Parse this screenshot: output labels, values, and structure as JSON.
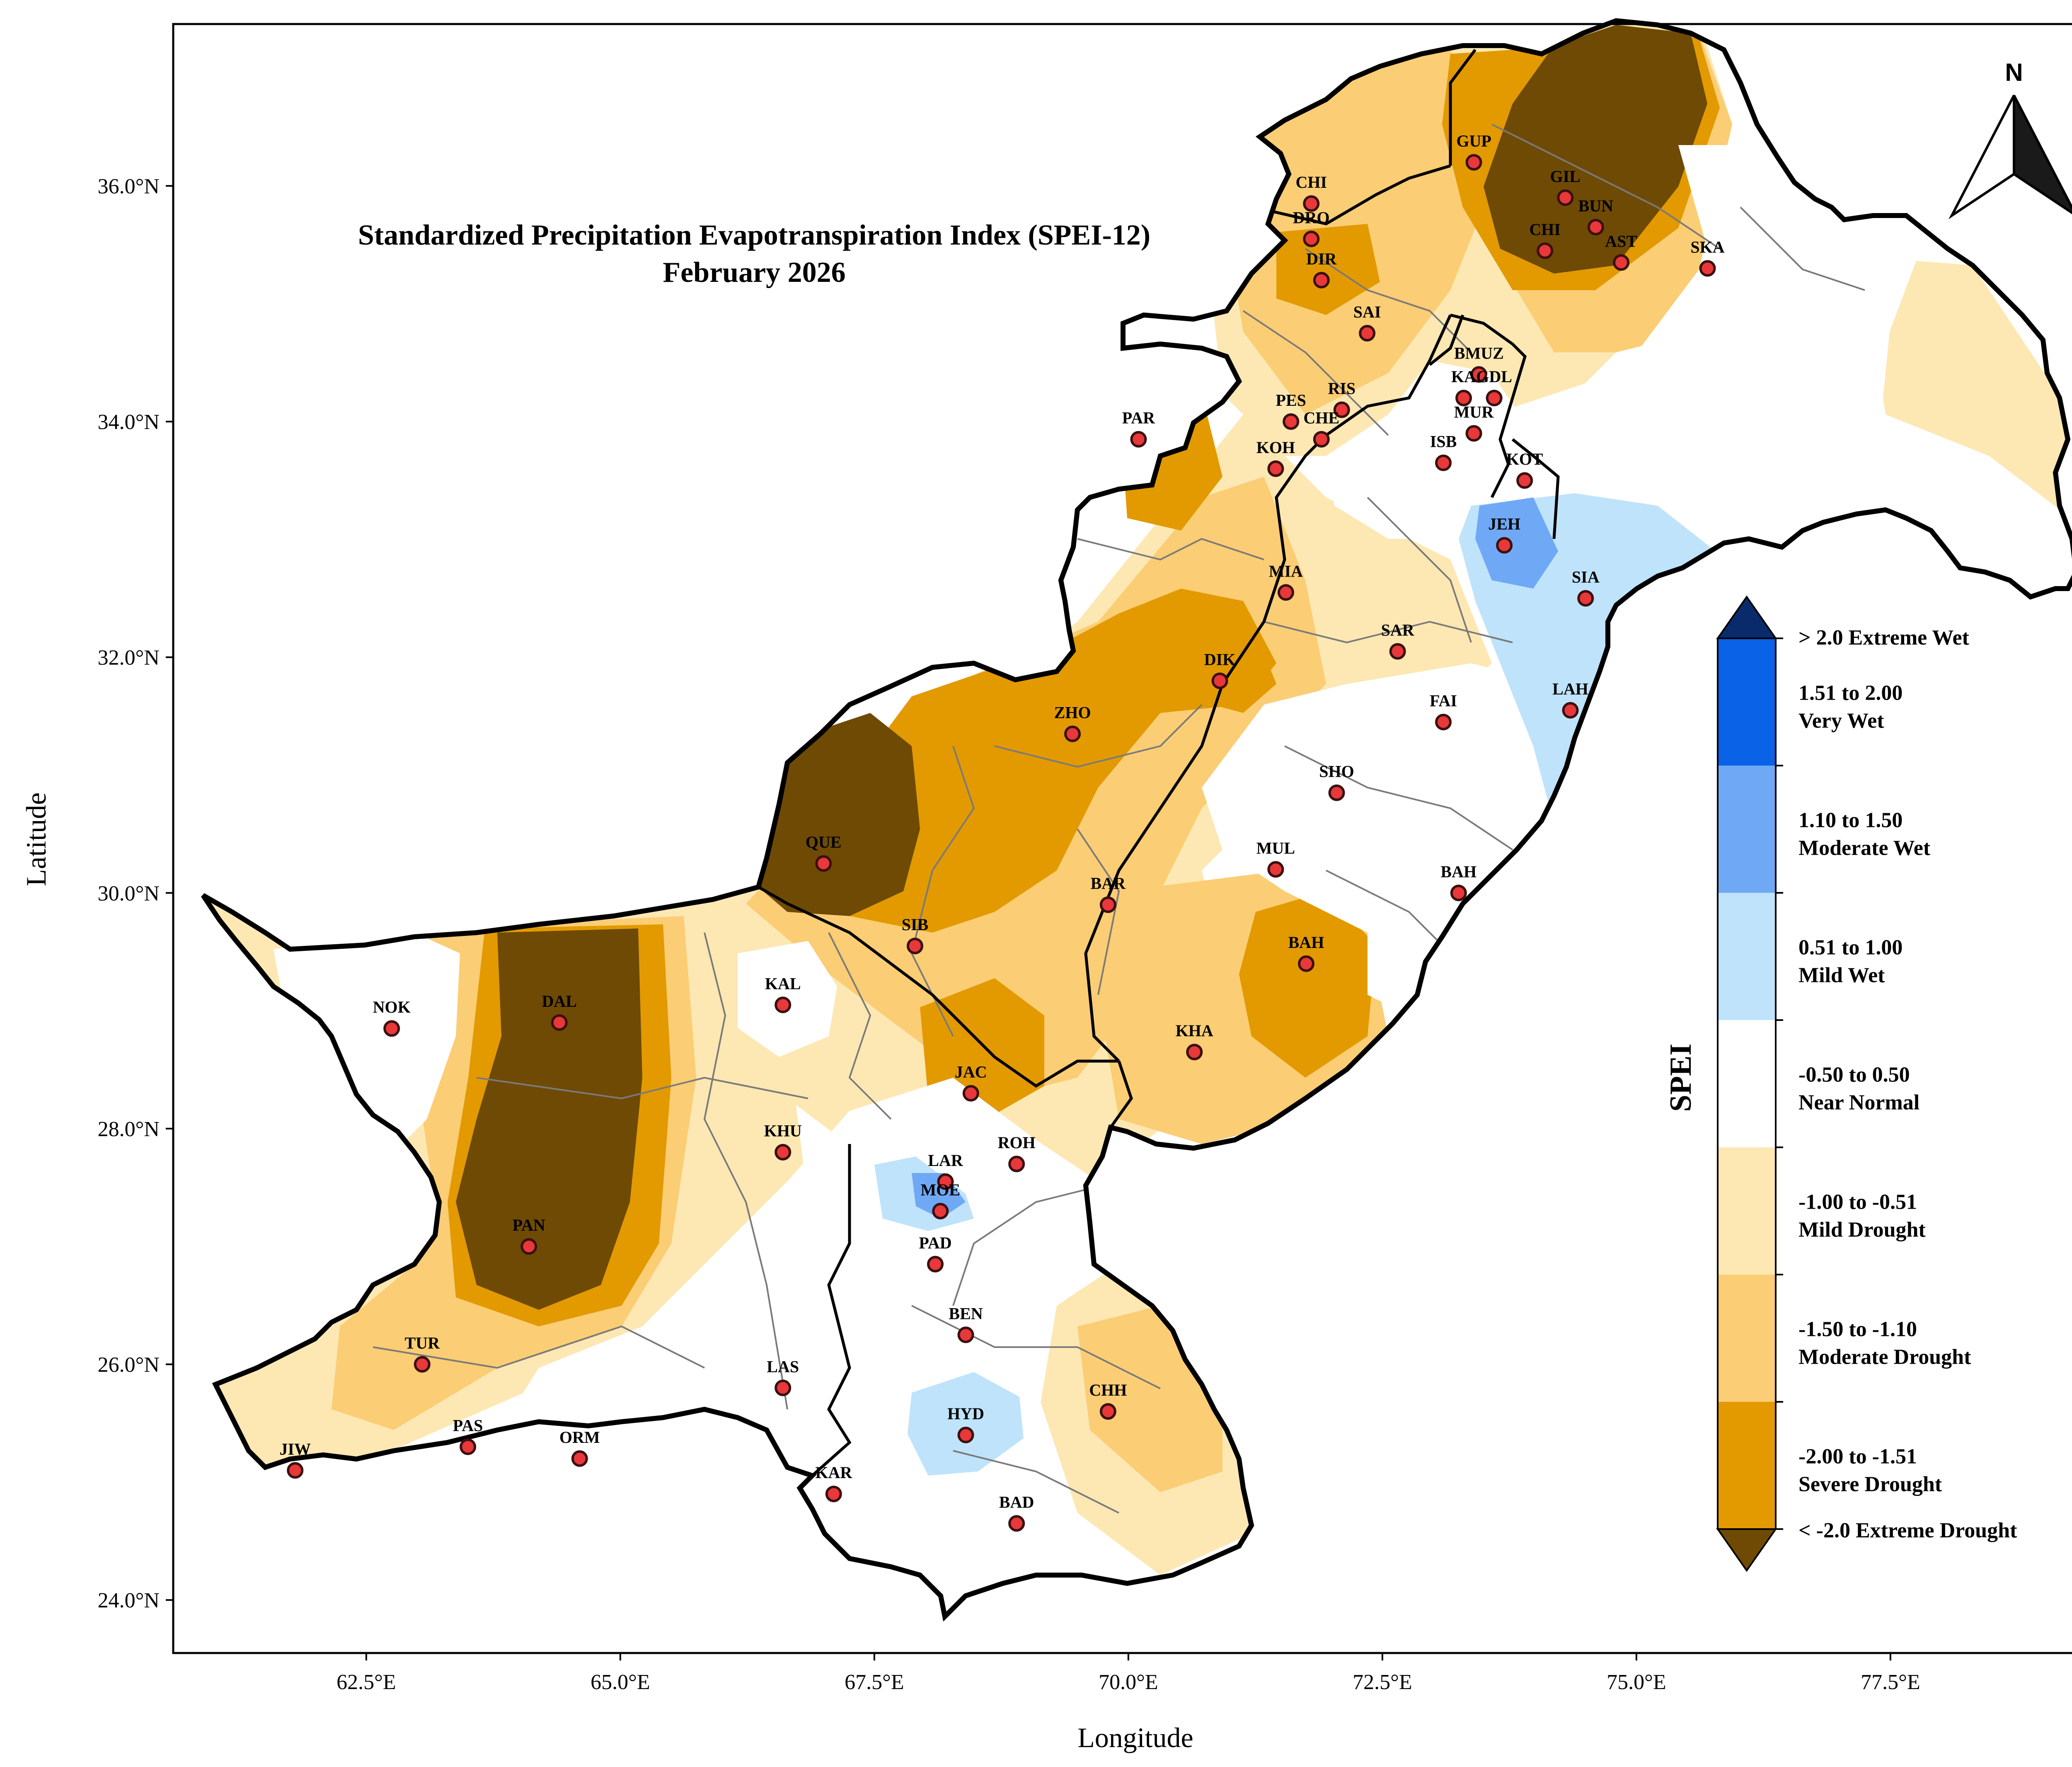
{
  "map": {
    "title_line1": "Standardized Precipitation Evapotranspiration Index (SPEI-12)",
    "title_line2": "February 2026",
    "xlabel": "Longitude",
    "ylabel": "Latitude",
    "north_label": "N",
    "x_ticks": [
      {
        "value": 62.5,
        "label": "62.5°E"
      },
      {
        "value": 65.0,
        "label": "65.0°E"
      },
      {
        "value": 67.5,
        "label": "67.5°E"
      },
      {
        "value": 70.0,
        "label": "70.0°E"
      },
      {
        "value": 72.5,
        "label": "72.5°E"
      },
      {
        "value": 75.0,
        "label": "75.0°E"
      },
      {
        "value": 77.5,
        "label": "77.5°E"
      }
    ],
    "y_ticks": [
      {
        "value": 24.0,
        "label": "24.0°N"
      },
      {
        "value": 26.0,
        "label": "26.0°N"
      },
      {
        "value": 28.0,
        "label": "28.0°N"
      },
      {
        "value": 30.0,
        "label": "30.0°N"
      },
      {
        "value": 32.0,
        "label": "32.0°N"
      },
      {
        "value": 34.0,
        "label": "34.0°N"
      },
      {
        "value": 36.0,
        "label": "36.0°N"
      }
    ],
    "stations": [
      {
        "code": "GUP",
        "lon": 73.4,
        "lat": 36.2
      },
      {
        "code": "CHI",
        "lon": 71.8,
        "lat": 35.85
      },
      {
        "code": "GIL",
        "lon": 74.3,
        "lat": 35.9
      },
      {
        "code": "BUN",
        "lon": 74.6,
        "lat": 35.65
      },
      {
        "code": "DRO",
        "lon": 71.8,
        "lat": 35.55
      },
      {
        "code": "CHI",
        "lon": 74.1,
        "lat": 35.45
      },
      {
        "code": "AST",
        "lon": 74.85,
        "lat": 35.35
      },
      {
        "code": "SKA",
        "lon": 75.7,
        "lat": 35.3
      },
      {
        "code": "DIR",
        "lon": 71.9,
        "lat": 35.2
      },
      {
        "code": "SAI",
        "lon": 72.35,
        "lat": 34.75
      },
      {
        "code": "BMUZ",
        "lon": 73.45,
        "lat": 34.4
      },
      {
        "code": "GDL",
        "lon": 73.6,
        "lat": 34.2
      },
      {
        "code": "KA",
        "lon": 73.3,
        "lat": 34.2
      },
      {
        "code": "RIS",
        "lon": 72.1,
        "lat": 34.1
      },
      {
        "code": "PES",
        "lon": 71.6,
        "lat": 34.0
      },
      {
        "code": "CHE",
        "lon": 71.9,
        "lat": 33.85
      },
      {
        "code": "MUR",
        "lon": 73.4,
        "lat": 33.9
      },
      {
        "code": "PAR",
        "lon": 70.1,
        "lat": 33.85
      },
      {
        "code": "KOH",
        "lon": 71.45,
        "lat": 33.6
      },
      {
        "code": "ISB",
        "lon": 73.1,
        "lat": 33.65
      },
      {
        "code": "KOT",
        "lon": 73.9,
        "lat": 33.5
      },
      {
        "code": "JEH",
        "lon": 73.7,
        "lat": 32.95
      },
      {
        "code": "MIA",
        "lon": 71.55,
        "lat": 32.55
      },
      {
        "code": "SIA",
        "lon": 74.5,
        "lat": 32.5
      },
      {
        "code": "SAR",
        "lon": 72.65,
        "lat": 32.05
      },
      {
        "code": "DIK",
        "lon": 70.9,
        "lat": 31.8
      },
      {
        "code": "LAH",
        "lon": 74.35,
        "lat": 31.55
      },
      {
        "code": "FAI",
        "lon": 73.1,
        "lat": 31.45
      },
      {
        "code": "ZHO",
        "lon": 69.45,
        "lat": 31.35
      },
      {
        "code": "SHO",
        "lon": 72.05,
        "lat": 30.85
      },
      {
        "code": "QUE",
        "lon": 67.0,
        "lat": 30.25
      },
      {
        "code": "MUL",
        "lon": 71.45,
        "lat": 30.2
      },
      {
        "code": "BAH",
        "lon": 73.25,
        "lat": 30.0
      },
      {
        "code": "BAR",
        "lon": 69.8,
        "lat": 29.9
      },
      {
        "code": "SIB",
        "lon": 67.9,
        "lat": 29.55
      },
      {
        "code": "BAH",
        "lon": 71.75,
        "lat": 29.4
      },
      {
        "code": "KAL",
        "lon": 66.6,
        "lat": 29.05
      },
      {
        "code": "NOK",
        "lon": 62.75,
        "lat": 28.85
      },
      {
        "code": "DAL",
        "lon": 64.4,
        "lat": 28.9
      },
      {
        "code": "KHA",
        "lon": 70.65,
        "lat": 28.65
      },
      {
        "code": "JAC",
        "lon": 68.45,
        "lat": 28.3
      },
      {
        "code": "KHU",
        "lon": 66.6,
        "lat": 27.8
      },
      {
        "code": "ROH",
        "lon": 68.9,
        "lat": 27.7
      },
      {
        "code": "LAR",
        "lon": 68.2,
        "lat": 27.55
      },
      {
        "code": "MOE",
        "lon": 68.15,
        "lat": 27.3
      },
      {
        "code": "PAN",
        "lon": 64.1,
        "lat": 27.0
      },
      {
        "code": "PAD",
        "lon": 68.1,
        "lat": 26.85
      },
      {
        "code": "BEN",
        "lon": 68.4,
        "lat": 26.25
      },
      {
        "code": "TUR",
        "lon": 63.05,
        "lat": 26.0
      },
      {
        "code": "LAS",
        "lon": 66.6,
        "lat": 25.8
      },
      {
        "code": "CHH",
        "lon": 69.8,
        "lat": 25.6
      },
      {
        "code": "HYD",
        "lon": 68.4,
        "lat": 25.4
      },
      {
        "code": "PAS",
        "lon": 63.5,
        "lat": 25.3
      },
      {
        "code": "ORM",
        "lon": 64.6,
        "lat": 25.2
      },
      {
        "code": "JIW",
        "lon": 61.8,
        "lat": 25.1
      },
      {
        "code": "KAR",
        "lon": 67.1,
        "lat": 24.9
      },
      {
        "code": "BAD",
        "lon": 68.9,
        "lat": 24.65
      }
    ]
  },
  "legend": {
    "title": "SPEI",
    "classes": [
      {
        "line1": "> 2.0 Extreme Wet",
        "line2": "",
        "color": "#0a2b6b"
      },
      {
        "line1": "1.51 to 2.00",
        "line2": "Very Wet",
        "color": "#0a62e6"
      },
      {
        "line1": "1.10 to 1.50",
        "line2": "Moderate Wet",
        "color": "#6fa9f5"
      },
      {
        "line1": "0.51 to 1.00",
        "line2": "Mild Wet",
        "color": "#bfe3fb"
      },
      {
        "line1": "-0.50 to 0.50",
        "line2": "Near Normal",
        "color": "#ffffff"
      },
      {
        "line1": "-1.00 to -0.51",
        "line2": "Mild Drought",
        "color": "#fde8b3"
      },
      {
        "line1": "-1.50 to -1.10",
        "line2": "Moderate Drought",
        "color": "#fbcd74"
      },
      {
        "line1": "-2.00 to -1.51",
        "line2": "Severe Drought",
        "color": "#e29a00"
      },
      {
        "line1": "< -2.0 Extreme Drought",
        "line2": "",
        "color": "#6e4a05"
      }
    ]
  }
}
